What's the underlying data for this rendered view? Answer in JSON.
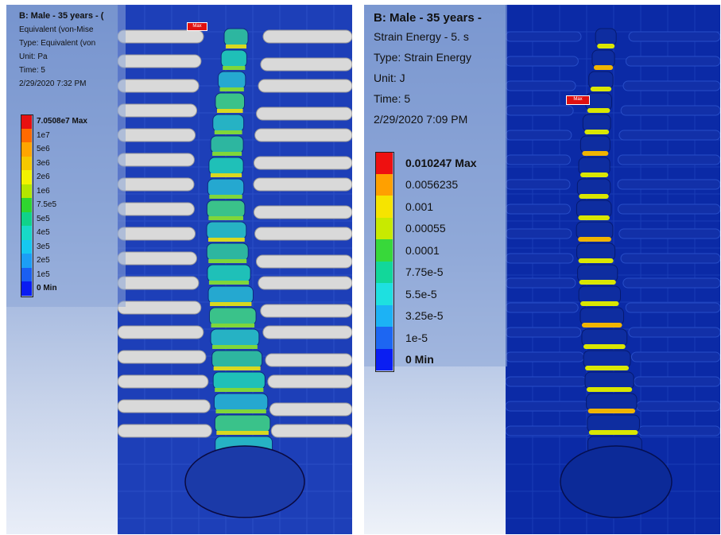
{
  "left": {
    "title": "B: Male - 35 years - (",
    "result_name": "Equivalent (von-Mise",
    "type": "Type: Equivalent (von",
    "unit": "Unit: Pa",
    "time": "Time: 5",
    "date": "2/29/2020 7:32 PM",
    "legend": [
      {
        "label": "7.0508e7 Max",
        "color": "#e81010"
      },
      {
        "label": "1e7",
        "color": "#ff6a00"
      },
      {
        "label": "5e6",
        "color": "#ffa500"
      },
      {
        "label": "3e6",
        "color": "#f5c800"
      },
      {
        "label": "2e6",
        "color": "#f2f200"
      },
      {
        "label": "1e6",
        "color": "#b3e600"
      },
      {
        "label": "7.5e5",
        "color": "#2fd62f"
      },
      {
        "label": "5e5",
        "color": "#10d28a"
      },
      {
        "label": "4e5",
        "color": "#18d9c7"
      },
      {
        "label": "3e5",
        "color": "#16c8f0"
      },
      {
        "label": "2e5",
        "color": "#1c9ef5"
      },
      {
        "label": "1e5",
        "color": "#1a5ff2"
      },
      {
        "label": "0 Min",
        "color": "#0a1cf2"
      }
    ],
    "max_marker": "Max"
  },
  "right": {
    "title": "B: Male - 35 years -",
    "result_name": "Strain Energy - 5. s",
    "type": "Type: Strain Energy",
    "unit": "Unit: J",
    "time": "Time: 5",
    "date": "2/29/2020 7:09 PM",
    "legend": [
      {
        "label": "0.010247 Max",
        "color": "#ee1010"
      },
      {
        "label": "0.0056235",
        "color": "#ffa000"
      },
      {
        "label": "0.001",
        "color": "#f6e400"
      },
      {
        "label": "0.00055",
        "color": "#c8ea00"
      },
      {
        "label": "0.0001",
        "color": "#38d83a"
      },
      {
        "label": "7.75e-5",
        "color": "#12d79a"
      },
      {
        "label": "5.5e-5",
        "color": "#1ee0e0"
      },
      {
        "label": "3.25e-5",
        "color": "#1cb2f5"
      },
      {
        "label": "1e-5",
        "color": "#1d66f2"
      },
      {
        "label": "0 Min",
        "color": "#0a1ef2"
      }
    ],
    "max_marker": "Max"
  }
}
